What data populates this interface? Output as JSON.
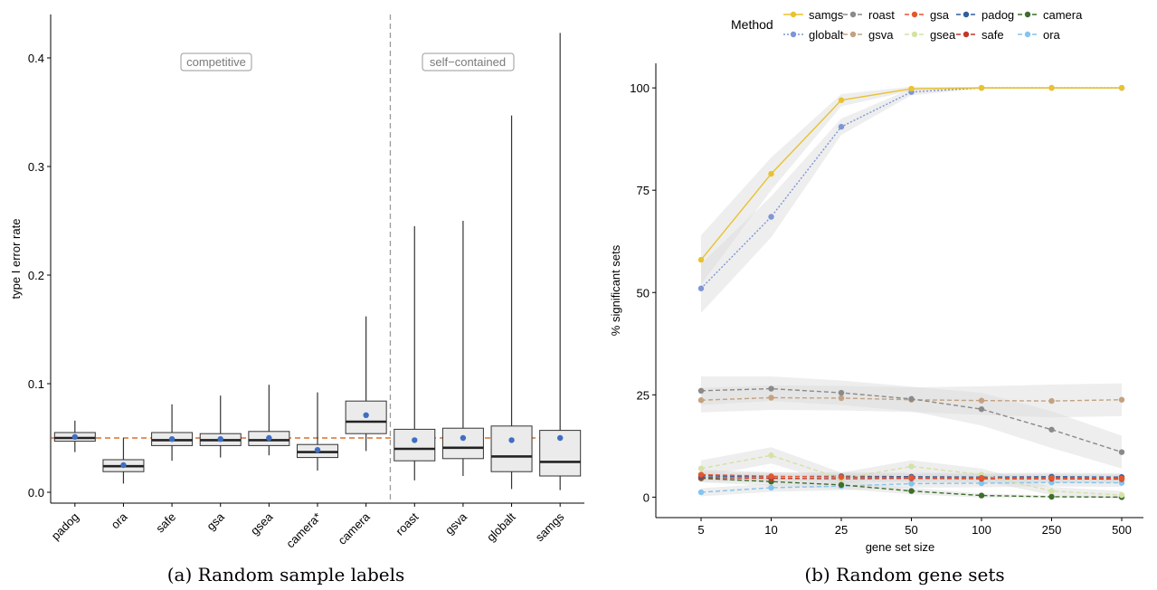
{
  "captions": {
    "a": "(a) Random sample labels",
    "b": "(b) Random gene sets"
  },
  "chart_data": [
    {
      "type": "box",
      "ylabel": "type I error rate",
      "ylim": [
        -0.01,
        0.44
      ],
      "yticks": [
        0.0,
        0.1,
        0.2,
        0.3,
        0.4
      ],
      "ytick_labels": [
        "0.0",
        "0.1",
        "0.2",
        "0.3",
        "0.4"
      ],
      "reference_line": {
        "y": 0.05,
        "color": "#d35400",
        "style": "dashed"
      },
      "separator_after_index": 6,
      "group_labels": {
        "left": "competitive",
        "right": "self−contained"
      },
      "categories": [
        "padog",
        "ora",
        "safe",
        "gsa",
        "gsea",
        "camera*",
        "camera",
        "roast",
        "gsva",
        "globalt",
        "samgs"
      ],
      "boxes": [
        {
          "min": 0.037,
          "q1": 0.047,
          "median": 0.05,
          "q3": 0.055,
          "max": 0.066,
          "mean": 0.051
        },
        {
          "min": 0.008,
          "q1": 0.019,
          "median": 0.024,
          "q3": 0.03,
          "max": 0.05,
          "mean": 0.025
        },
        {
          "min": 0.029,
          "q1": 0.043,
          "median": 0.048,
          "q3": 0.055,
          "max": 0.081,
          "mean": 0.049
        },
        {
          "min": 0.032,
          "q1": 0.043,
          "median": 0.048,
          "q3": 0.054,
          "max": 0.089,
          "mean": 0.049
        },
        {
          "min": 0.034,
          "q1": 0.043,
          "median": 0.048,
          "q3": 0.056,
          "max": 0.099,
          "mean": 0.05
        },
        {
          "min": 0.02,
          "q1": 0.032,
          "median": 0.037,
          "q3": 0.044,
          "max": 0.092,
          "mean": 0.039
        },
        {
          "min": 0.038,
          "q1": 0.054,
          "median": 0.065,
          "q3": 0.084,
          "max": 0.162,
          "mean": 0.071
        },
        {
          "min": 0.011,
          "q1": 0.029,
          "median": 0.04,
          "q3": 0.058,
          "max": 0.245,
          "mean": 0.048
        },
        {
          "min": 0.015,
          "q1": 0.031,
          "median": 0.041,
          "q3": 0.059,
          "max": 0.25,
          "mean": 0.05
        },
        {
          "min": 0.003,
          "q1": 0.019,
          "median": 0.033,
          "q3": 0.061,
          "max": 0.347,
          "mean": 0.048
        },
        {
          "min": 0.002,
          "q1": 0.015,
          "median": 0.028,
          "q3": 0.057,
          "max": 0.423,
          "mean": 0.05
        }
      ],
      "colors": {
        "box_fill": "#ebebeb",
        "box_stroke": "#333333",
        "mean": "#3f6fc2"
      }
    },
    {
      "type": "line",
      "xlabel": "gene set size",
      "ylabel": "% significant sets",
      "x": [
        "5",
        "10",
        "25",
        "50",
        "100",
        "250",
        "500"
      ],
      "ylim": [
        -5,
        106
      ],
      "yticks": [
        0,
        25,
        50,
        75,
        100
      ],
      "ytick_labels": [
        "0",
        "25",
        "50",
        "75",
        "100"
      ],
      "legend": {
        "title": "Method",
        "position": "top"
      },
      "series": [
        {
          "name": "samgs",
          "color": "#e8c230",
          "dash": "solid",
          "values": [
            58,
            79,
            97,
            99.8,
            100,
            100,
            100
          ],
          "band": [
            6,
            4,
            1.5,
            0.5,
            0.2,
            0.2,
            0.2
          ]
        },
        {
          "name": "globalt",
          "color": "#7e95d6",
          "dash": "dotted",
          "values": [
            51,
            68.5,
            90.5,
            99,
            100,
            100,
            100
          ],
          "band": [
            6,
            5,
            2,
            0.8,
            0.2,
            0.2,
            0.2
          ]
        },
        {
          "name": "roast",
          "color": "#8a8a8a",
          "dash": "dashed",
          "values": [
            26,
            26.5,
            25.5,
            24,
            21.5,
            16.5,
            11
          ],
          "band": [
            3.5,
            3,
            3,
            3,
            4,
            4.5,
            4
          ]
        },
        {
          "name": "gsva",
          "color": "#c4a181",
          "dash": "dashed",
          "values": [
            23.7,
            24.3,
            24.2,
            23.8,
            23.6,
            23.5,
            23.8
          ],
          "band": [
            3,
            3,
            3,
            3,
            3.5,
            4,
            4
          ]
        },
        {
          "name": "gsa",
          "color": "#e4572e",
          "dash": "dashed",
          "values": [
            5.5,
            5.1,
            4.9,
            4.8,
            4.7,
            4.7,
            4.6
          ],
          "band": [
            1.2,
            1,
            1,
            1,
            1,
            1,
            1
          ]
        },
        {
          "name": "gsea",
          "color": "#d4e2a5",
          "dash": "dashed",
          "values": [
            7,
            10.2,
            4.5,
            7.5,
            5.5,
            1.5,
            0.5
          ],
          "band": [
            2,
            2,
            1.5,
            1.5,
            1.5,
            1,
            1
          ]
        },
        {
          "name": "padog",
          "color": "#2f5f9e",
          "dash": "dashed",
          "values": [
            5.2,
            5,
            5.1,
            5,
            4.9,
            5,
            4.9
          ],
          "band": [
            1,
            1,
            1,
            1,
            1,
            1,
            1
          ]
        },
        {
          "name": "safe",
          "color": "#c0392b",
          "dash": "dashed",
          "values": [
            4.8,
            4.6,
            4.5,
            4.6,
            4.5,
            4.5,
            4.4
          ],
          "band": [
            1,
            1,
            1,
            1,
            1,
            1,
            1
          ]
        },
        {
          "name": "camera",
          "color": "#3f6d2a",
          "dash": "dashed",
          "values": [
            4.6,
            3.8,
            3,
            1.5,
            0.4,
            0.1,
            0
          ],
          "band": [
            1,
            1,
            1,
            0.8,
            0.5,
            0.3,
            0.2
          ]
        },
        {
          "name": "ora",
          "color": "#83c4f0",
          "dash": "dashed",
          "values": [
            1.2,
            2.3,
            2.7,
            3.3,
            3.4,
            3.6,
            3.5
          ],
          "band": [
            1,
            1,
            1,
            1,
            1,
            1,
            1
          ]
        }
      ],
      "legend_rows": [
        [
          "samgs",
          "roast",
          "gsa",
          "padog",
          "camera"
        ],
        [
          "globalt",
          "gsva",
          "gsea",
          "safe",
          "ora"
        ]
      ]
    }
  ]
}
